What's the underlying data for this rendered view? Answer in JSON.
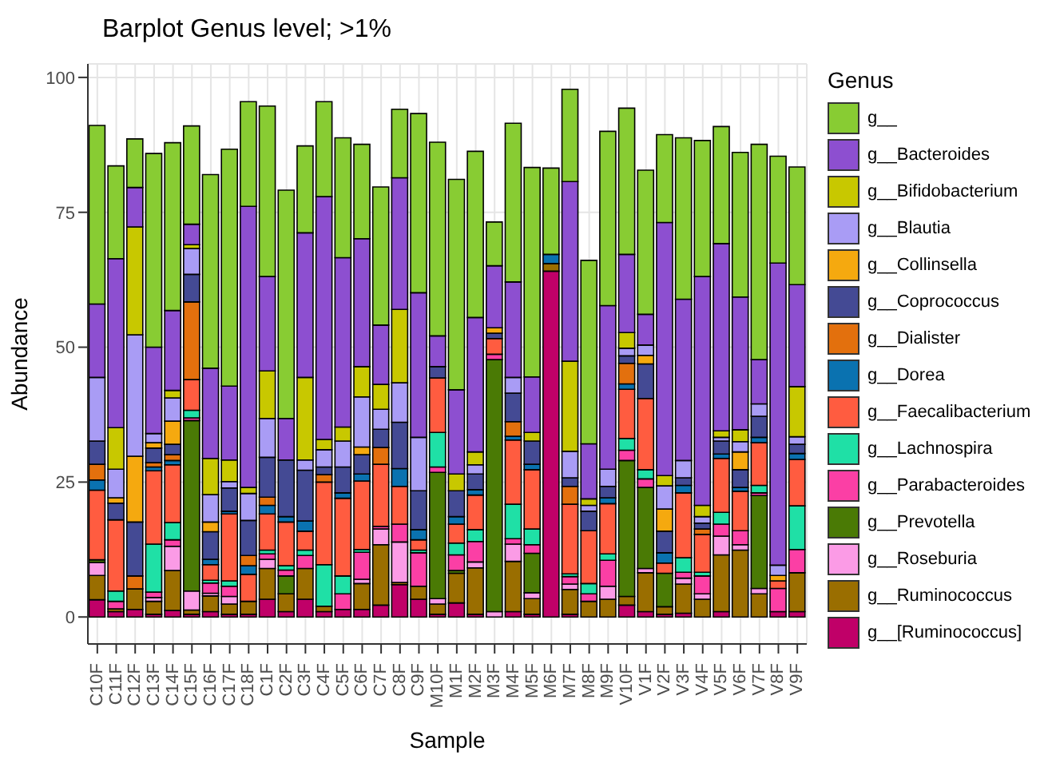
{
  "chart_data": {
    "type": "bar",
    "title": "Barplot Genus level; >1%",
    "xlabel": "Sample",
    "ylabel": "Abundance",
    "legend_title": "Genus",
    "stacked": true,
    "grid": true,
    "legend": "right",
    "ylim": [
      -5,
      102.5
    ],
    "yticks": [
      0,
      25,
      50,
      75,
      100
    ],
    "categories": [
      "C10F",
      "C11F",
      "C12F",
      "C13F",
      "C14F",
      "C15F",
      "C16F",
      "C17F",
      "C18F",
      "C1F",
      "C2F",
      "C3F",
      "C4F",
      "C5F",
      "C6F",
      "C7F",
      "C8F",
      "C9F",
      "M10F",
      "M1F",
      "M2F",
      "M3F",
      "M4F",
      "M5F",
      "M6F",
      "M7F",
      "M8F",
      "M9F",
      "V10F",
      "V1F",
      "V2F",
      "V3F",
      "V4F",
      "V5F",
      "V6F",
      "V7F",
      "V8F",
      "V9F"
    ],
    "series": [
      {
        "name": "g__[Ruminococcus]",
        "color": "#c00068",
        "values": [
          3.2,
          1.0,
          1.4,
          0.5,
          1.2,
          0.5,
          1.0,
          0.5,
          0.5,
          3.3,
          1.0,
          3.3,
          1.0,
          1.4,
          1.4,
          2.2,
          6.0,
          3.3,
          0.5,
          2.6,
          0.5,
          0,
          1.0,
          0.5,
          64.1,
          0.5,
          0,
          0,
          2.2,
          1.0,
          0.5,
          0.7,
          0,
          1.0,
          0,
          0,
          1.0,
          1.0
        ]
      },
      {
        "name": "g__Ruminococcus",
        "color": "#9a6e00",
        "values": [
          4.5,
          0.5,
          3.8,
          2.4,
          7.4,
          0.8,
          2.9,
          1.9,
          2.4,
          5.7,
          3.3,
          5.7,
          1.0,
          0,
          4.8,
          11.2,
          0.4,
          2.4,
          1.9,
          5.5,
          8.6,
          0,
          9.3,
          2.9,
          1.4,
          4.6,
          2.9,
          3.3,
          1.6,
          7.2,
          1.4,
          5.4,
          3.3,
          10.5,
          12.4,
          4.3,
          0,
          7.2
        ]
      },
      {
        "name": "g__Roseburia",
        "color": "#fb9be6",
        "values": [
          2.4,
          0,
          0,
          0.7,
          4.5,
          3.5,
          0.5,
          1.4,
          0,
          1.7,
          0,
          0,
          0,
          0,
          0.8,
          2.9,
          7.5,
          0,
          1.0,
          0,
          1.1,
          1.0,
          3.2,
          1.1,
          0,
          1.0,
          0,
          2.4,
          0,
          0.8,
          0,
          1.1,
          1.0,
          3.5,
          1.0,
          1.0,
          0,
          0
        ]
      },
      {
        "name": "g__Prevotella",
        "color": "#4a7a05",
        "values": [
          0.5,
          0,
          0,
          0,
          0,
          31.6,
          0,
          0,
          0,
          0,
          3.3,
          0,
          0,
          0,
          0,
          0,
          0,
          0,
          23.4,
          0.5,
          0,
          46.7,
          0,
          7.3,
          0,
          0,
          0,
          0,
          25.2,
          15.0,
          6.2,
          0,
          0,
          0,
          0,
          17.2,
          0,
          0
        ]
      },
      {
        "name": "g__Parabacteroides",
        "color": "#fb3fa5",
        "values": [
          0,
          1.4,
          0,
          1.0,
          1.2,
          0.5,
          1.9,
          1.9,
          null,
          1.0,
          1.1,
          2.4,
          0,
          2.9,
          5.0,
          0.5,
          3.3,
          6.2,
          1.0,
          2.9,
          3.8,
          1.0,
          1.0,
          1.6,
          0,
          1.4,
          1.4,
          4.8,
          1.9,
          1.6,
          0,
          1.1,
          3.3,
          2.2,
          2.6,
          0.5,
          4.3,
          4.3
        ]
      },
      {
        "name": "g__Lachnospira",
        "color": "#1fe0a6",
        "values": [
          null,
          1.9,
          0,
          8.9,
          3.2,
          1.4,
          0.5,
          1.0,
          0,
          0.7,
          0.8,
          1.0,
          7.7,
          3.3,
          0.5,
          0,
          0,
          0.5,
          6.4,
          2.2,
          2.2,
          0,
          6.4,
          2.9,
          0,
          0.5,
          1.9,
          1.2,
          2.2,
          1.7,
          0,
          2.7,
          0.7,
          2.2,
          0,
          1.4,
          0,
          8.1
        ]
      },
      {
        "name": "g__Faecalibacterium",
        "color": "#ff5c40",
        "values": [
          12.9,
          13.2,
          0,
          13.6,
          10.7,
          5.7,
          2.9,
          12.4,
          5.0,
          6.7,
          8.1,
          3.5,
          15.3,
          14.4,
          12.7,
          11.5,
          7.0,
          1.9,
          10.1,
          3.5,
          6.4,
          2.9,
          11.9,
          11.0,
          0,
          12.9,
          9.8,
          9.3,
          9.1,
          13.2,
          1.9,
          12.0,
          7.0,
          10.0,
          7.3,
          7.9,
          1.4,
          8.6
        ]
      },
      {
        "name": "g__Dorea",
        "color": "#0a72b0",
        "values": [
          1.9,
          0,
          0,
          0.7,
          0.8,
          0,
          1.0,
          0.5,
          1.6,
          1.6,
          1.0,
          1.9,
          0,
          1.0,
          1.3,
          0,
          3.3,
          1.9,
          0,
          1.4,
          1.0,
          0,
          0.7,
          1.0,
          1.7,
          0,
          0,
          1.1,
          1.0,
          0,
          1.9,
          1.4,
          0,
          0.8,
          0.7,
          1.0,
          0,
          1.1
        ]
      },
      {
        "name": "g__Dialister",
        "color": "#e3700d",
        "values": [
          2.9,
          0,
          2.4,
          0.8,
          1.1,
          14.4,
          0,
          0,
          1.9,
          1.5,
          0,
          0,
          1.4,
          0,
          0,
          3.1,
          0,
          0,
          0,
          0,
          0,
          0,
          2.7,
          0,
          0,
          3.3,
          0,
          0,
          3.8,
          0,
          0,
          0,
          1.0,
          0,
          0,
          0,
          0,
          0
        ]
      },
      {
        "name": "g__Coprococcus",
        "color": "#444a94",
        "values": [
          4.3,
          3.1,
          10.0,
          2.7,
          1.9,
          5.1,
          5.1,
          4.3,
          6.5,
          7.4,
          10.5,
          9.4,
          1.4,
          4.8,
          3.6,
          3.4,
          8.6,
          7.2,
          2.1,
          4.8,
          2.9,
          1.0,
          5.3,
          4.3,
          0,
          1.6,
          3.6,
          2.1,
          1.4,
          6.4,
          4.0,
          1.4,
          1.1,
          2.4,
          3.3,
          3.9,
          0,
          1.7
        ]
      },
      {
        "name": "g__Collinsella",
        "color": "#f5a90f",
        "values": [
          0,
          1.0,
          12.2,
          1.0,
          4.3,
          0,
          1.8,
          0,
          0,
          0,
          0,
          0,
          0,
          0,
          1.4,
          0,
          0,
          0,
          0,
          0,
          0,
          1.0,
          0,
          0,
          0,
          0,
          0,
          0,
          0,
          1.6,
          4.1,
          0,
          0,
          0,
          3.3,
          0,
          1.0,
          0
        ]
      },
      {
        "name": "g__Blautia",
        "color": "#a99cf5",
        "values": [
          11.8,
          5.3,
          22.5,
          1.7,
          4.3,
          4.8,
          5.1,
          1.2,
          5.0,
          7.2,
          0,
          1.9,
          3.2,
          4.8,
          9.3,
          3.7,
          7.3,
          9.9,
          0,
          0,
          1.7,
          0,
          2.9,
          0,
          0,
          4.9,
          1.1,
          3.2,
          1.4,
          1.9,
          4.3,
          3.2,
          1.2,
          0.7,
          1.9,
          2.3,
          1.9,
          1.4
        ]
      },
      {
        "name": "g__Bifidobacterium",
        "color": "#c8c800",
        "values": [
          0,
          7.7,
          20.0,
          0,
          1.4,
          0.7,
          6.7,
          4.0,
          1.1,
          8.8,
          0,
          15.3,
          1.9,
          2.6,
          5.6,
          4.6,
          13.6,
          0,
          0,
          3.1,
          2.4,
          0,
          0,
          1.6,
          0,
          16.7,
          1.2,
          0,
          2.9,
          0,
          1.9,
          0,
          2.1,
          1.2,
          2.2,
          0,
          0,
          9.3
        ]
      },
      {
        "name": "g__Bacteroides",
        "color": "#8d4fd0",
        "values": [
          13.6,
          31.3,
          7.3,
          16.0,
          14.8,
          3.8,
          16.7,
          13.7,
          52.1,
          17.5,
          7.7,
          26.8,
          45.0,
          31.4,
          23.7,
          11.0,
          24.4,
          26.8,
          5.7,
          15.6,
          24.9,
          11.5,
          17.7,
          10.3,
          0,
          33.3,
          10.2,
          30.3,
          14.5,
          5.7,
          46.9,
          29.9,
          42.4,
          34.7,
          24.6,
          8.2,
          56.0,
          18.9
        ]
      },
      {
        "name": "g__",
        "color": "#88cc33",
        "values": [
          33.1,
          17.2,
          9.0,
          35.9,
          31.1,
          18.2,
          35.9,
          43.9,
          19.4,
          31.6,
          42.3,
          16.1,
          17.6,
          22.2,
          17.5,
          25.6,
          12.7,
          33.2,
          35.9,
          39.0,
          30.8,
          8.1,
          29.4,
          38.8,
          16.0,
          17.1,
          34.0,
          32.3,
          27.1,
          26.7,
          16.3,
          29.9,
          25.2,
          21.7,
          26.8,
          39.9,
          19.8,
          21.8
        ]
      }
    ]
  }
}
